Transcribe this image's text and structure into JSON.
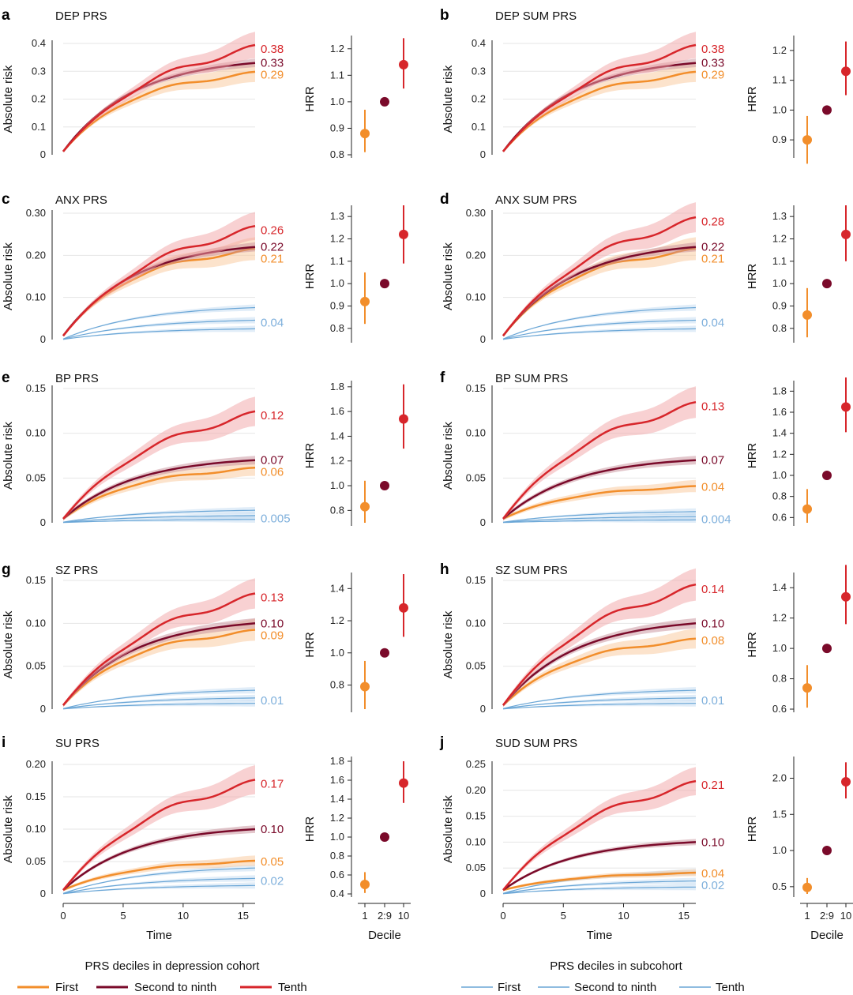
{
  "chart_data": {
    "type": "line",
    "colors": {
      "first": "#f28e2b",
      "mid": "#7a0a2a",
      "tenth": "#d7262b",
      "first_band": "#f9c79a",
      "mid_band": "#c78f99",
      "tenth_band": "#f1a3a6",
      "sub": "#6aa6d6",
      "sub_band": "#a9cbea",
      "sub_label": "#7fb0dc",
      "grid": "#e6e6e6",
      "axis": "#222222"
    },
    "x_ticks": [
      0,
      5,
      10,
      15
    ],
    "xlim": [
      0,
      16
    ],
    "xlabel": "Time",
    "hrr_xlabel": "Decile",
    "hrr_categories": [
      "1",
      "2:9",
      "10"
    ],
    "ylabel": "Absolute risk",
    "hrr_ylabel": "HRR",
    "legend_left": {
      "title": "PRS deciles in depression cohort",
      "items": [
        "First",
        "Second to ninth",
        "Tenth"
      ]
    },
    "legend_right": {
      "title": "PRS deciles in subcohort",
      "items": [
        "First",
        "Second to ninth",
        "Tenth"
      ]
    },
    "panels": [
      {
        "letter": "a",
        "title": "DEP PRS",
        "ylim": [
          0,
          0.4
        ],
        "yticks": [
          "0",
          "0.1",
          "0.2",
          "0.3",
          "0.4"
        ],
        "ytick_vals": [
          0,
          0.1,
          0.2,
          0.3,
          0.4
        ],
        "end_values": {
          "tenth": 0.38,
          "mid": 0.33,
          "first": 0.29
        },
        "end_labels": {
          "tenth": "0.38",
          "mid": "0.33",
          "first": "0.29"
        },
        "has_sub": false,
        "hrr": {
          "ylim": [
            0.8,
            1.25
          ],
          "yticks": [
            "0.8",
            "0.9",
            "1.0",
            "1.1",
            "1.2"
          ],
          "ytick_vals": [
            0.8,
            0.9,
            1.0,
            1.1,
            1.2
          ],
          "first": {
            "est": 0.88,
            "lo": 0.81,
            "hi": 0.97
          },
          "mid": {
            "est": 1.0
          },
          "tenth": {
            "est": 1.14,
            "lo": 1.05,
            "hi": 1.24
          }
        }
      },
      {
        "letter": "b",
        "title": "DEP SUM PRS",
        "ylim": [
          0,
          0.4
        ],
        "yticks": [
          "0",
          "0.1",
          "0.2",
          "0.3",
          "0.4"
        ],
        "ytick_vals": [
          0,
          0.1,
          0.2,
          0.3,
          0.4
        ],
        "end_values": {
          "tenth": 0.38,
          "mid": 0.33,
          "first": 0.29
        },
        "end_labels": {
          "tenth": "0.38",
          "mid": "0.33",
          "first": "0.29"
        },
        "has_sub": false,
        "hrr": {
          "ylim": [
            0.85,
            1.25
          ],
          "yticks": [
            "0.9",
            "1.0",
            "1.1",
            "1.2"
          ],
          "ytick_vals": [
            0.9,
            1.0,
            1.1,
            1.2
          ],
          "first": {
            "est": 0.9,
            "lo": 0.82,
            "hi": 0.98
          },
          "mid": {
            "est": 1.0
          },
          "tenth": {
            "est": 1.13,
            "lo": 1.05,
            "hi": 1.23
          }
        }
      },
      {
        "letter": "c",
        "title": "ANX PRS",
        "ylim": [
          0,
          0.3
        ],
        "yticks": [
          "0",
          "0.10",
          "0.20",
          "0.30"
        ],
        "ytick_vals": [
          0,
          0.1,
          0.2,
          0.3
        ],
        "end_values": {
          "tenth": 0.26,
          "mid": 0.22,
          "first": 0.21,
          "sub": 0.04
        },
        "end_labels": {
          "tenth": "0.26",
          "mid": "0.22",
          "first": "0.21",
          "sub": "0.04"
        },
        "has_sub": true,
        "hrr": {
          "ylim": [
            0.75,
            1.35
          ],
          "yticks": [
            "0.8",
            "0.9",
            "1.0",
            "1.1",
            "1.2",
            "1.3"
          ],
          "ytick_vals": [
            0.8,
            0.9,
            1.0,
            1.1,
            1.2,
            1.3
          ],
          "first": {
            "est": 0.92,
            "lo": 0.82,
            "hi": 1.05
          },
          "mid": {
            "est": 1.0
          },
          "tenth": {
            "est": 1.22,
            "lo": 1.09,
            "hi": 1.35
          }
        }
      },
      {
        "letter": "d",
        "title": "ANX SUM PRS",
        "ylim": [
          0,
          0.3
        ],
        "yticks": [
          "0",
          "0.10",
          "0.20",
          "0.30"
        ],
        "ytick_vals": [
          0,
          0.1,
          0.2,
          0.3
        ],
        "end_values": {
          "tenth": 0.28,
          "mid": 0.22,
          "first": 0.21,
          "sub": 0.04
        },
        "end_labels": {
          "tenth": "0.28",
          "mid": "0.22",
          "first": "0.21",
          "sub": "0.04"
        },
        "has_sub": true,
        "hrr": {
          "ylim": [
            0.75,
            1.35
          ],
          "yticks": [
            "0.8",
            "0.9",
            "1.0",
            "1.1",
            "1.2",
            "1.3"
          ],
          "ytick_vals": [
            0.8,
            0.9,
            1.0,
            1.1,
            1.2,
            1.3
          ],
          "first": {
            "est": 0.86,
            "lo": 0.76,
            "hi": 0.98
          },
          "mid": {
            "est": 1.0
          },
          "tenth": {
            "est": 1.22,
            "lo": 1.1,
            "hi": 1.35
          }
        }
      },
      {
        "letter": "e",
        "title": "BP PRS",
        "ylim": [
          0,
          0.15
        ],
        "yticks": [
          "0",
          "0.05",
          "0.10",
          "0.15"
        ],
        "ytick_vals": [
          0,
          0.05,
          0.1,
          0.15
        ],
        "end_values": {
          "tenth": 0.12,
          "mid": 0.07,
          "first": 0.06,
          "sub": 0.005
        },
        "end_labels": {
          "tenth": "0.12",
          "mid": "0.07",
          "first": "0.06",
          "sub": "0.005"
        },
        "has_sub": true,
        "hrr": {
          "ylim": [
            0.7,
            1.85
          ],
          "yticks": [
            "0.8",
            "1.0",
            "1.2",
            "1.4",
            "1.6",
            "1.8"
          ],
          "ytick_vals": [
            0.8,
            1.0,
            1.2,
            1.4,
            1.6,
            1.8
          ],
          "first": {
            "est": 0.83,
            "lo": 0.7,
            "hi": 1.04
          },
          "mid": {
            "est": 1.0
          },
          "tenth": {
            "est": 1.54,
            "lo": 1.3,
            "hi": 1.82
          }
        }
      },
      {
        "letter": "f",
        "title": "BP SUM PRS",
        "ylim": [
          0,
          0.15
        ],
        "yticks": [
          "0",
          "0.05",
          "0.10",
          "0.15"
        ],
        "ytick_vals": [
          0,
          0.05,
          0.1,
          0.15
        ],
        "end_values": {
          "tenth": 0.13,
          "mid": 0.07,
          "first": 0.04,
          "sub": 0.004
        },
        "end_labels": {
          "tenth": "0.13",
          "mid": "0.07",
          "first": "0.04",
          "sub": "0.004"
        },
        "has_sub": true,
        "hrr": {
          "ylim": [
            0.55,
            1.9
          ],
          "yticks": [
            "0.6",
            "0.8",
            "1.0",
            "1.2",
            "1.4",
            "1.6",
            "1.8"
          ],
          "ytick_vals": [
            0.6,
            0.8,
            1.0,
            1.2,
            1.4,
            1.6,
            1.8
          ],
          "first": {
            "est": 0.68,
            "lo": 0.55,
            "hi": 0.87
          },
          "mid": {
            "est": 1.0
          },
          "tenth": {
            "est": 1.65,
            "lo": 1.41,
            "hi": 1.93
          }
        }
      },
      {
        "letter": "g",
        "title": "SZ PRS",
        "ylim": [
          0,
          0.15
        ],
        "yticks": [
          "0",
          "0.05",
          "0.10",
          "0.15"
        ],
        "ytick_vals": [
          0,
          0.05,
          0.1,
          0.15
        ],
        "end_values": {
          "tenth": 0.13,
          "mid": 0.1,
          "first": 0.09,
          "sub": 0.01
        },
        "end_labels": {
          "tenth": "0.13",
          "mid": "0.10",
          "first": "0.09",
          "sub": "0.01"
        },
        "has_sub": true,
        "hrr": {
          "ylim": [
            0.65,
            1.5
          ],
          "yticks": [
            "0.8",
            "1.0",
            "1.2",
            "1.4"
          ],
          "ytick_vals": [
            0.8,
            1.0,
            1.2,
            1.4
          ],
          "first": {
            "est": 0.79,
            "lo": 0.65,
            "hi": 0.95
          },
          "mid": {
            "est": 1.0
          },
          "tenth": {
            "est": 1.28,
            "lo": 1.1,
            "hi": 1.49
          }
        }
      },
      {
        "letter": "h",
        "title": "SZ SUM PRS",
        "ylim": [
          0,
          0.15
        ],
        "yticks": [
          "0",
          "0.05",
          "0.10",
          "0.15"
        ],
        "ytick_vals": [
          0,
          0.05,
          0.1,
          0.15
        ],
        "end_values": {
          "tenth": 0.14,
          "mid": 0.1,
          "first": 0.08,
          "sub": 0.01
        },
        "end_labels": {
          "tenth": "0.14",
          "mid": "0.10",
          "first": "0.08",
          "sub": "0.01"
        },
        "has_sub": true,
        "hrr": {
          "ylim": [
            0.6,
            1.5
          ],
          "yticks": [
            "0.6",
            "0.8",
            "1.0",
            "1.2",
            "1.4"
          ],
          "ytick_vals": [
            0.6,
            0.8,
            1.0,
            1.2,
            1.4
          ],
          "first": {
            "est": 0.74,
            "lo": 0.61,
            "hi": 0.89
          },
          "mid": {
            "est": 1.0
          },
          "tenth": {
            "est": 1.34,
            "lo": 1.16,
            "hi": 1.55
          }
        }
      },
      {
        "letter": "i",
        "title": "SU PRS",
        "ylim": [
          0,
          0.2
        ],
        "yticks": [
          "0",
          "0.05",
          "0.10",
          "0.15",
          "0.20"
        ],
        "ytick_vals": [
          0,
          0.05,
          0.1,
          0.15,
          0.2
        ],
        "end_values": {
          "tenth": 0.17,
          "mid": 0.1,
          "first": 0.05,
          "sub": 0.02
        },
        "end_labels": {
          "tenth": "0.17",
          "mid": "0.10",
          "first": "0.05",
          "sub": "0.02"
        },
        "has_sub": true,
        "hrr": {
          "ylim": [
            0.4,
            1.85
          ],
          "yticks": [
            "0.4",
            "0.6",
            "0.8",
            "1.0",
            "1.2",
            "1.4",
            "1.6",
            "1.8"
          ],
          "ytick_vals": [
            0.4,
            0.6,
            0.8,
            1.0,
            1.2,
            1.4,
            1.6,
            1.8
          ],
          "first": {
            "est": 0.5,
            "lo": 0.41,
            "hi": 0.63
          },
          "mid": {
            "est": 1.0
          },
          "tenth": {
            "est": 1.57,
            "lo": 1.36,
            "hi": 1.8
          }
        }
      },
      {
        "letter": "j",
        "title": "SUD SUM PRS",
        "ylim": [
          0,
          0.25
        ],
        "yticks": [
          "0",
          "0.05",
          "0.10",
          "0.15",
          "0.20",
          "0.25"
        ],
        "ytick_vals": [
          0,
          0.05,
          0.1,
          0.15,
          0.2,
          0.25
        ],
        "end_values": {
          "tenth": 0.21,
          "mid": 0.1,
          "first": 0.04,
          "sub": 0.02
        },
        "end_labels": {
          "tenth": "0.21",
          "mid": "0.10",
          "first": "0.04",
          "sub": "0.02"
        },
        "has_sub": true,
        "hrr": {
          "ylim": [
            0.4,
            2.3
          ],
          "yticks": [
            "0.5",
            "1.0",
            "1.5",
            "2.0"
          ],
          "ytick_vals": [
            0.5,
            1.0,
            1.5,
            2.0
          ],
          "first": {
            "est": 0.49,
            "lo": 0.4,
            "hi": 0.62
          },
          "mid": {
            "est": 1.0
          },
          "tenth": {
            "est": 1.95,
            "lo": 1.72,
            "hi": 2.22
          }
        }
      }
    ]
  }
}
